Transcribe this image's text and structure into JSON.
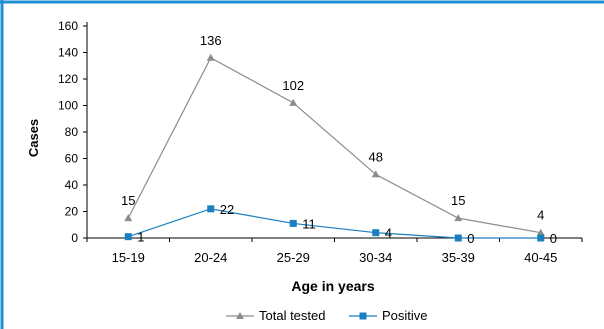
{
  "colors": {
    "frame": "#1f8fd1",
    "total_tested": "#8c8c8c",
    "positive": "#1a7fbf",
    "axis": "#000000"
  },
  "chart_data": {
    "type": "line",
    "categories": [
      "15-19",
      "20-24",
      "25-29",
      "30-34",
      "35-39",
      "40-45"
    ],
    "series": [
      {
        "name": "Total tested",
        "values": [
          15,
          136,
          102,
          48,
          15,
          4
        ],
        "marker": "triangle",
        "color": "#8c8c8c"
      },
      {
        "name": "Positive",
        "values": [
          1,
          22,
          11,
          4,
          0,
          0
        ],
        "marker": "square",
        "color": "#1a7fbf"
      }
    ],
    "xlabel": "Age in years",
    "ylabel": "Cases",
    "ylim": [
      0,
      160
    ],
    "yticks": [
      0,
      20,
      40,
      60,
      80,
      100,
      120,
      140,
      160
    ],
    "legend_position": "bottom",
    "grid": false
  }
}
